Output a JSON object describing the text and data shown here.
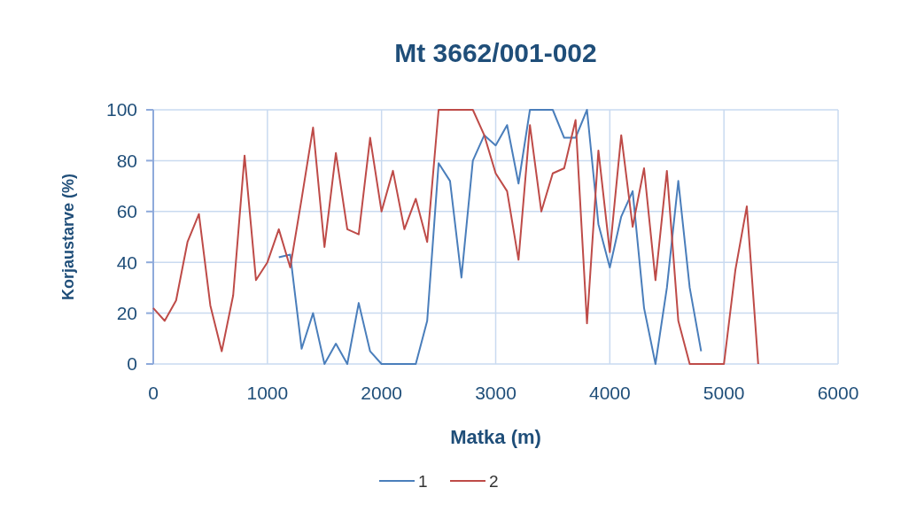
{
  "chart_data": {
    "type": "line",
    "title": "Mt 3662/001-002",
    "xlabel": "Matka (m)",
    "ylabel": "Korjaustarve (%)",
    "xlim": [
      0,
      6000
    ],
    "xticks": [
      0,
      1000,
      2000,
      3000,
      4000,
      5000,
      6000
    ],
    "ylim": [
      0,
      100
    ],
    "yticks": [
      0,
      20,
      40,
      60,
      80,
      100
    ],
    "grid": true,
    "legend": "bottom",
    "series": [
      {
        "name": "1",
        "color": "#4a7ebb",
        "x": [
          1100,
          1200,
          1300,
          1400,
          1500,
          1600,
          1700,
          1800,
          1900,
          2000,
          2100,
          2200,
          2300,
          2400,
          2500,
          2600,
          2700,
          2800,
          2900,
          3000,
          3100,
          3200,
          3300,
          3400,
          3500,
          3600,
          3700,
          3800,
          3900,
          4000,
          4100,
          4200,
          4300,
          4400,
          4500,
          4600,
          4700,
          4800
        ],
        "values": [
          42,
          43,
          6,
          20,
          0,
          8,
          0,
          24,
          5,
          0,
          0,
          0,
          0,
          17,
          79,
          72,
          34,
          80,
          90,
          86,
          94,
          71,
          100,
          100,
          100,
          89,
          89,
          100,
          55,
          38,
          58,
          68,
          22,
          0,
          30,
          72,
          30,
          5
        ]
      },
      {
        "name": "2",
        "color": "#be4b48",
        "x": [
          0,
          100,
          200,
          300,
          400,
          500,
          600,
          700,
          800,
          900,
          1000,
          1100,
          1200,
          1300,
          1400,
          1500,
          1600,
          1700,
          1800,
          1900,
          2000,
          2100,
          2200,
          2300,
          2400,
          2500,
          2600,
          2700,
          2800,
          2900,
          3000,
          3100,
          3200,
          3300,
          3400,
          3500,
          3600,
          3700,
          3800,
          3900,
          4000,
          4100,
          4200,
          4300,
          4400,
          4500,
          4600,
          4700,
          4800,
          4900,
          5000,
          5100,
          5200,
          5300
        ],
        "values": [
          22,
          17,
          25,
          48,
          59,
          23,
          5,
          27,
          82,
          33,
          40,
          53,
          38,
          65,
          93,
          46,
          83,
          53,
          51,
          89,
          60,
          76,
          53,
          65,
          48,
          100,
          100,
          100,
          100,
          90,
          75,
          68,
          41,
          94,
          60,
          75,
          77,
          96,
          16,
          84,
          44,
          90,
          54,
          77,
          33,
          76,
          17,
          0,
          0,
          0,
          0,
          37,
          62,
          0
        ]
      }
    ]
  }
}
